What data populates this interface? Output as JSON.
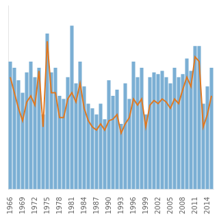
{
  "chart_data": {
    "type": "bar",
    "x": [
      1966,
      1967,
      1968,
      1969,
      1970,
      1971,
      1972,
      1973,
      1974,
      1975,
      1976,
      1977,
      1978,
      1979,
      1980,
      1981,
      1982,
      1983,
      1984,
      1985,
      1986,
      1987,
      1988,
      1989,
      1990,
      1991,
      1992,
      1993,
      1994,
      1995,
      1996,
      1997,
      1998,
      1999,
      2000,
      2001,
      2002,
      2003,
      2004,
      2005,
      2006,
      2007,
      2008,
      2009,
      2010,
      2011,
      2012,
      2013,
      2014,
      2015
    ],
    "series": [
      {
        "type": "bar",
        "color": "#7bafd4",
        "values": [
          82,
          78,
          70,
          62,
          75,
          82,
          72,
          78,
          48,
          100,
          75,
          78,
          60,
          58,
          72,
          105,
          68,
          82,
          66,
          55,
          52,
          48,
          55,
          45,
          70,
          60,
          64,
          42,
          68,
          58,
          82,
          72,
          78,
          48,
          72,
          75,
          74,
          76,
          72,
          68,
          78,
          72,
          74,
          84,
          76,
          92,
          92,
          55,
          66,
          78
        ]
      },
      {
        "type": "line",
        "color": "#e07820",
        "values": [
          72,
          62,
          52,
          44,
          56,
          60,
          54,
          76,
          40,
          95,
          62,
          62,
          46,
          46,
          58,
          62,
          56,
          68,
          52,
          44,
          40,
          38,
          42,
          38,
          44,
          45,
          48,
          36,
          42,
          46,
          58,
          54,
          58,
          40,
          54,
          57,
          55,
          58,
          56,
          52,
          58,
          55,
          64,
          72,
          66,
          85,
          82,
          40,
          48,
          60
        ]
      }
    ],
    "xlim": [
      1965.5,
      2015.5
    ],
    "xticks": [
      1966,
      1969,
      1972,
      1975,
      1978,
      1981,
      1984,
      1987,
      1990,
      1993,
      1996,
      1999,
      2002,
      2005,
      2008,
      2011,
      2014
    ],
    "ylim": [
      0,
      118
    ],
    "tick_labels": "x",
    "grid": false
  }
}
